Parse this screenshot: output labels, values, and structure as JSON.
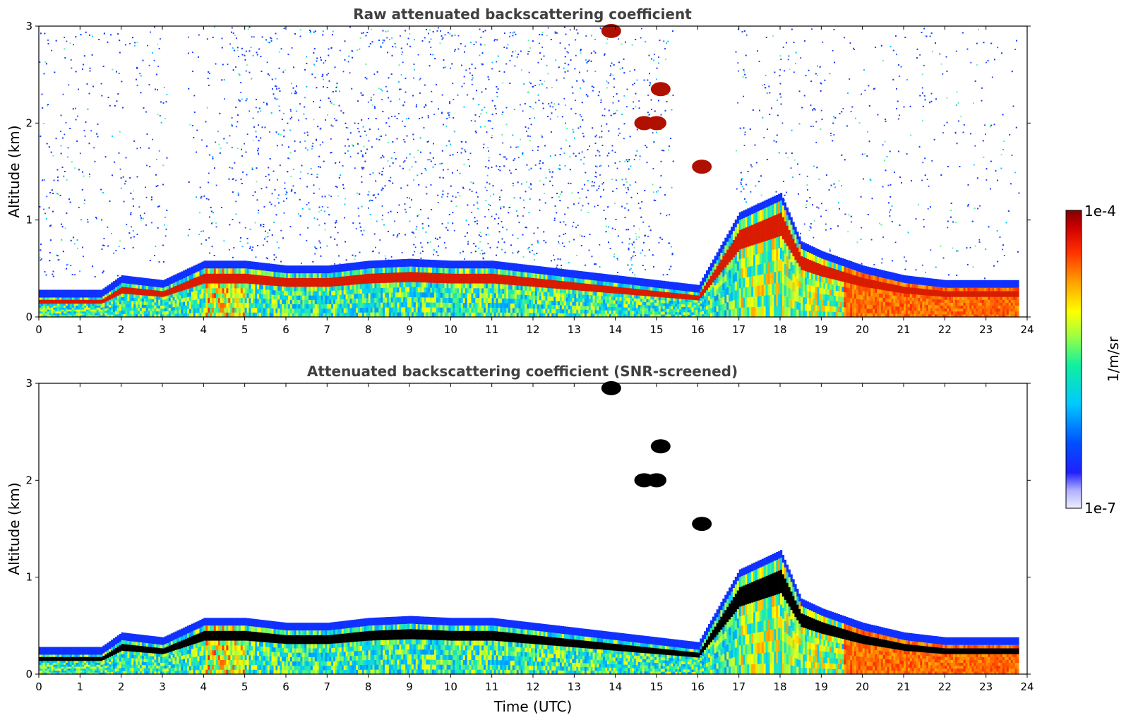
{
  "chart_data": [
    {
      "type": "heatmap",
      "title": "Raw attenuated backscattering coefficient",
      "xlabel": "",
      "ylabel": "Altitude (km)",
      "xlim": [
        0,
        24
      ],
      "ylim": [
        0,
        3
      ],
      "x_ticks": [
        "0",
        "1",
        "2",
        "3",
        "4",
        "5",
        "6",
        "7",
        "8",
        "9",
        "10",
        "11",
        "12",
        "13",
        "14",
        "15",
        "16",
        "17",
        "18",
        "19",
        "20",
        "21",
        "22",
        "23",
        "24"
      ],
      "y_ticks": [
        "0",
        "1",
        "2",
        "3"
      ],
      "screened": false
    },
    {
      "type": "heatmap",
      "title": "Attenuated backscattering coefficient (SNR-screened)",
      "xlabel": "Time (UTC)",
      "ylabel": "Altitude (km)",
      "xlim": [
        0,
        24
      ],
      "ylim": [
        0,
        3
      ],
      "x_ticks": [
        "0",
        "1",
        "2",
        "3",
        "4",
        "5",
        "6",
        "7",
        "8",
        "9",
        "10",
        "11",
        "12",
        "13",
        "14",
        "15",
        "16",
        "17",
        "18",
        "19",
        "20",
        "21",
        "22",
        "23",
        "24"
      ],
      "y_ticks": [
        "0",
        "1",
        "2",
        "3"
      ],
      "screened": true
    }
  ],
  "colorbar": {
    "label": "1/m/sr",
    "max_label": "1e-4",
    "min_label": "1e-7",
    "scale": "log",
    "colormap": [
      "#e6e6fa",
      "#0000ff",
      "#00bfff",
      "#00ff80",
      "#ffff00",
      "#ff8000",
      "#ff0000",
      "#800000"
    ]
  },
  "features": {
    "boundary_layer_top_km": [
      [
        0,
        0.2
      ],
      [
        1.5,
        0.2
      ],
      [
        2,
        0.35
      ],
      [
        3,
        0.3
      ],
      [
        4,
        0.5
      ],
      [
        5,
        0.5
      ],
      [
        6,
        0.45
      ],
      [
        7,
        0.45
      ],
      [
        8,
        0.5
      ],
      [
        9,
        0.52
      ],
      [
        10,
        0.5
      ],
      [
        11,
        0.5
      ],
      [
        12,
        0.45
      ],
      [
        13,
        0.4
      ],
      [
        14,
        0.35
      ],
      [
        15,
        0.3
      ],
      [
        16,
        0.25
      ],
      [
        17,
        1.0
      ],
      [
        18,
        1.2
      ],
      [
        18.5,
        0.7
      ],
      [
        19,
        0.6
      ],
      [
        20,
        0.45
      ],
      [
        21,
        0.35
      ],
      [
        22,
        0.3
      ],
      [
        23,
        0.3
      ],
      [
        23.8,
        0.3
      ]
    ],
    "cloud_patches": [
      {
        "t": 13.9,
        "z": 2.95
      },
      {
        "t": 15.1,
        "z": 2.35
      },
      {
        "t": 14.7,
        "z": 2.0
      },
      {
        "t": 15.0,
        "z": 2.0
      },
      {
        "t": 16.1,
        "z": 1.55
      }
    ]
  }
}
